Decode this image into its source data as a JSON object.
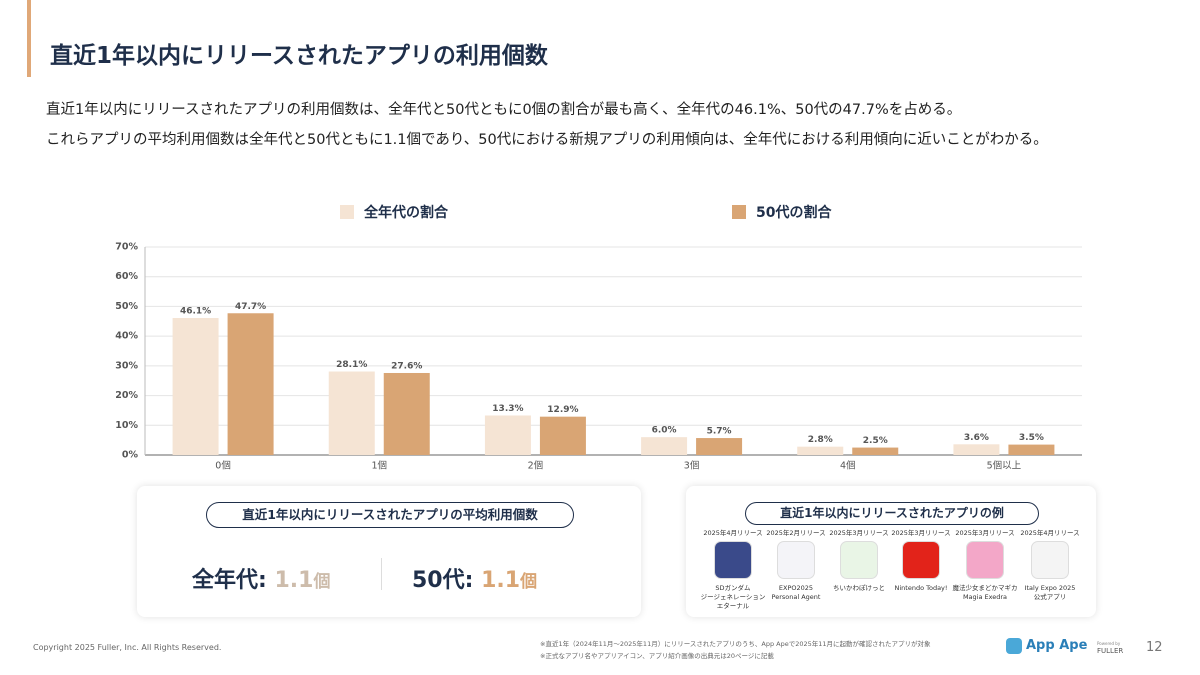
{
  "header": {
    "title": "直近1年以内にリリースされたアプリの利用個数"
  },
  "body": {
    "lines": [
      "直近1年以内にリリースされたアプリの利用個数は、全年代と50代ともに0個の割合が最も高く、全年代の46.1%、50代の47.7%を占める。",
      "これらアプリの平均利用個数は全年代と50代ともに1.1個であり、50代における新規アプリの利用傾向は、全年代における利用傾向に近いことがわかる。"
    ]
  },
  "chart_data": {
    "type": "bar",
    "categories": [
      "0個",
      "1個",
      "2個",
      "3個",
      "4個",
      "5個以上"
    ],
    "series": [
      {
        "name": "全年代の割合",
        "color": "#f5e4d4",
        "values": [
          46.1,
          28.1,
          13.3,
          6.0,
          2.8,
          3.6
        ],
        "value_labels": [
          "46.1%",
          "28.1%",
          "13.3%",
          "6.0%",
          "2.8%",
          "3.6%"
        ]
      },
      {
        "name": "50代の割合",
        "color": "#d9a574",
        "values": [
          47.7,
          27.6,
          12.9,
          5.7,
          2.5,
          3.5
        ],
        "value_labels": [
          "47.7%",
          "27.6%",
          "12.9%",
          "5.7%",
          "2.5%",
          "3.5%"
        ]
      }
    ],
    "ylim": [
      0,
      70
    ],
    "yticks": [
      {
        "value": 0,
        "label": "0%"
      },
      {
        "value": 10,
        "label": "10%"
      },
      {
        "value": 20,
        "label": "20%"
      },
      {
        "value": 30,
        "label": "30%"
      },
      {
        "value": 40,
        "label": "40%"
      },
      {
        "value": 50,
        "label": "50%"
      },
      {
        "value": 60,
        "label": "60%"
      },
      {
        "value": 70,
        "label": "70%"
      }
    ],
    "grid": true,
    "legend": "top"
  },
  "summary": {
    "title": "直近1年以内にリリースされたアプリの平均利用個数",
    "items": [
      {
        "label": "全年代:",
        "value": 1.1,
        "unit": "個"
      },
      {
        "label": "50代:",
        "value": 1.1,
        "unit": "個"
      }
    ]
  },
  "examples": {
    "title": "直近1年以内にリリースされたアプリの例",
    "apps": [
      {
        "release": "2025年4月リリース",
        "name": [
          "SDガンダム",
          "ジージェネレーション",
          "エターナル"
        ]
      },
      {
        "release": "2025年2月リリース",
        "name": [
          "EXPO2025",
          "Personal Agent"
        ]
      },
      {
        "release": "2025年3月リリース",
        "name": [
          "ちいかわぽけっと"
        ]
      },
      {
        "release": "2025年3月リリース",
        "name": [
          "Nintendo Today!"
        ]
      },
      {
        "release": "2025年3月リリース",
        "name": [
          "魔法少女まどかマギカ",
          "Magia Exedra"
        ]
      },
      {
        "release": "2025年4月リリース",
        "name": [
          "Italy Expo 2025",
          "公式アプリ"
        ]
      }
    ]
  },
  "footer": {
    "copyright": "Copyright 2025 Fuller, Inc. All Rights Reserved.",
    "notes": [
      "※直近1年（2024年11月～2025年11月）にリリースされたアプリのうち、App Apeで2025年11月に起動が確認されたアプリが対象",
      "※正式なアプリ名やアプリアイコン、アプリ紹介画像の出典元は20ページに記載"
    ],
    "brand": "App Ape",
    "powered": "Powered by",
    "company": "FULLER",
    "page": 12
  }
}
